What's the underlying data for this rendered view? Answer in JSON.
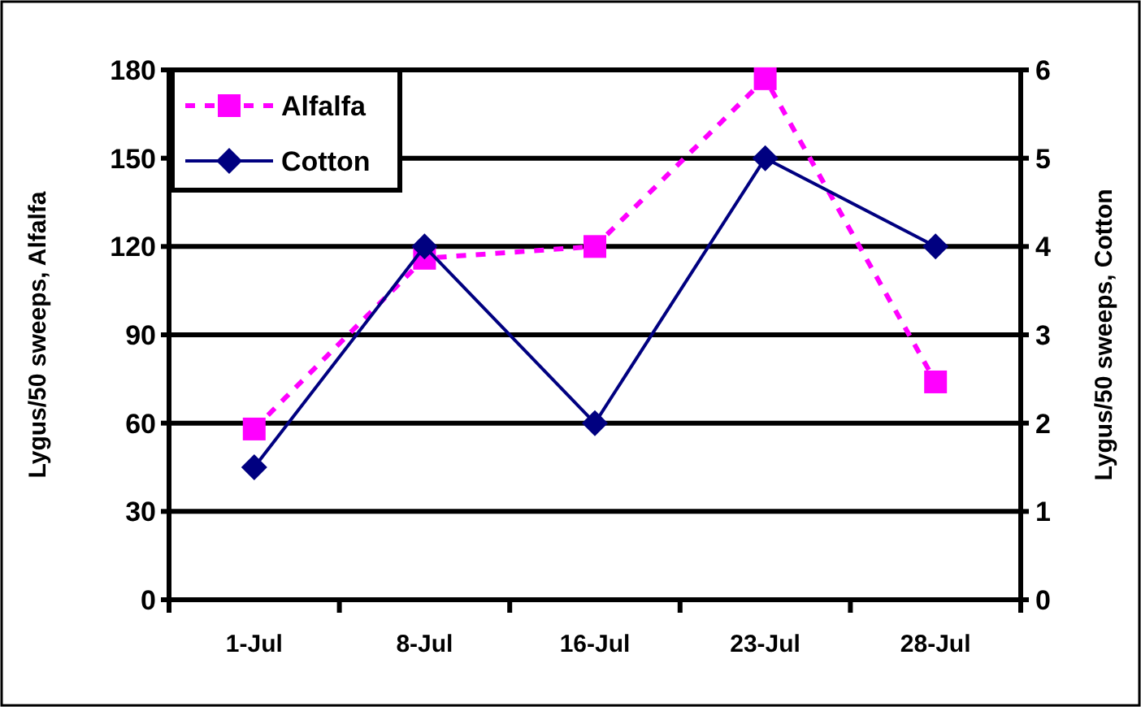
{
  "chart_data": {
    "type": "line",
    "ylabel": "Lygus/50 sweeps, Alfalfa",
    "y2label": "Lygus/50 sweeps, Cotton",
    "categories": [
      "1-Jul",
      "8-Jul",
      "16-Jul",
      "23-Jul",
      "28-Jul"
    ],
    "series": [
      {
        "name": "Alfalfa",
        "color": "#ff00ff",
        "values": [
          58,
          116,
          120,
          177,
          74
        ],
        "marker": "square",
        "line_style": "dashed"
      },
      {
        "name": "Cotton",
        "color": "#000080",
        "values": [
          1.5,
          4,
          2,
          5,
          4
        ],
        "axis": "y2",
        "marker": "diamond",
        "line_style": "solid"
      }
    ],
    "ylim": [
      0,
      180
    ],
    "yticks": [
      0,
      30,
      60,
      90,
      120,
      150,
      180
    ],
    "y2lim": [
      0,
      6
    ],
    "y2ticks": [
      0,
      1,
      2,
      3,
      4,
      5,
      6
    ],
    "grid": "y",
    "legend": "top left"
  }
}
